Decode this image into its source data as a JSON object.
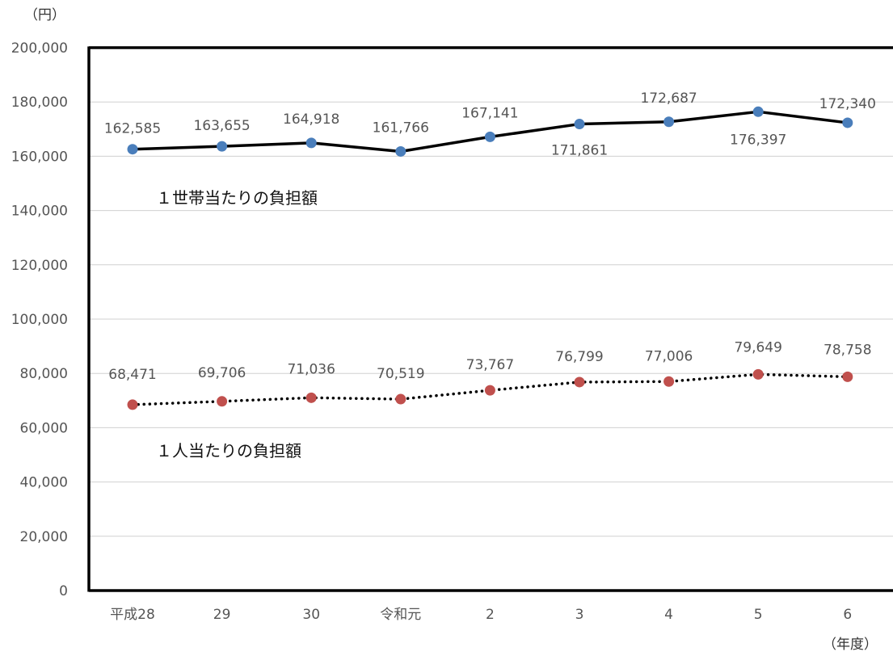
{
  "chart_data": {
    "type": "line",
    "y_unit_label": "（円）",
    "x_unit_label": "（年度）",
    "categories": [
      "平成28",
      "29",
      "30",
      "令和元",
      "2",
      "3",
      "4",
      "5",
      "6"
    ],
    "ylim": [
      0,
      200000
    ],
    "ytick_step": 20000,
    "ytick_labels": [
      "0",
      "20,000",
      "40,000",
      "60,000",
      "80,000",
      "100,000",
      "120,000",
      "140,000",
      "160,000",
      "180,000",
      "200,000"
    ],
    "grid": true,
    "series": [
      {
        "name": "１世帯当たりの負担額",
        "values": [
          162585,
          163655,
          164918,
          161766,
          167141,
          171861,
          172687,
          176397,
          172340
        ],
        "value_labels": [
          "162,585",
          "163,655",
          "164,918",
          "161,766",
          "167,141",
          "171,861",
          "172,687",
          "176,397",
          "172,340"
        ],
        "line_color": "#000000",
        "marker_color": "#4a7ebb",
        "line_style": "solid"
      },
      {
        "name": "１人当たりの負担額",
        "values": [
          68471,
          69706,
          71036,
          70519,
          73767,
          76799,
          77006,
          79649,
          78758
        ],
        "value_labels": [
          "68,471",
          "69,706",
          "71,036",
          "70,519",
          "73,767",
          "76,799",
          "77,006",
          "79,649",
          "78,758"
        ],
        "line_color": "#000000",
        "marker_color": "#c0504d",
        "line_style": "dotted"
      }
    ]
  }
}
